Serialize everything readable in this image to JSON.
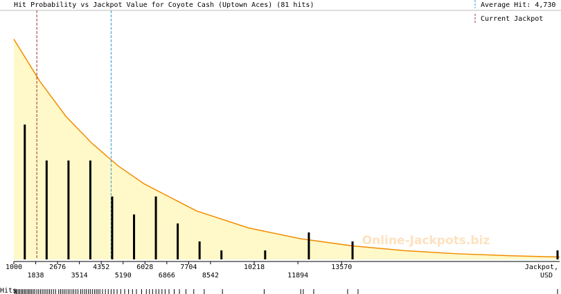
{
  "chart_data": {
    "type": "bar",
    "title": "Hit Probability vs Jackpot Value for Coyote Cash (Uptown Aces) (81 hits)",
    "x_label": "Jackpot,",
    "x_unit": "USD",
    "hits_label": "Hits",
    "watermark": "Online-Jackpots.biz",
    "xlim": [
      1000,
      21930
    ],
    "ylim": [
      0,
      27.7
    ],
    "xticks": [
      1000,
      1838,
      2676,
      3514,
      4352,
      5190,
      6028,
      6866,
      7704,
      8542,
      10218,
      11894,
      13570
    ],
    "bars": {
      "color": "#000000",
      "x": [
        1419,
        2257,
        3095,
        3933,
        4771,
        5609,
        6447,
        7285,
        8123,
        8961,
        10637,
        12313,
        13989,
        21850
      ],
      "values": [
        15,
        11,
        11,
        11,
        7,
        5,
        7,
        4,
        2,
        1,
        1,
        3,
        2,
        1
      ]
    },
    "curve": {
      "color": "#f08c00",
      "fill": "#fff8c8",
      "x": [
        1000,
        2000,
        3000,
        4000,
        5000,
        6000,
        8000,
        10000,
        12000,
        14000,
        16000,
        18000,
        20000,
        21930
      ],
      "values": [
        24.5,
        19.8,
        15.9,
        12.9,
        10.4,
        8.4,
        5.4,
        3.5,
        2.3,
        1.5,
        0.97,
        0.63,
        0.41,
        0.27
      ]
    },
    "average_hit": {
      "value": 4730,
      "label": "Average Hit: 4,730",
      "color": "#3399cc"
    },
    "current_jackpot": {
      "value": 1880,
      "label": "Current Jackpot",
      "color": "#993333"
    },
    "hits": [
      1030,
      1080,
      1120,
      1180,
      1230,
      1290,
      1340,
      1400,
      1450,
      1510,
      1570,
      1620,
      1680,
      1740,
      1800,
      1880,
      1950,
      2020,
      2090,
      2160,
      2230,
      2300,
      2370,
      2440,
      2520,
      2600,
      2720,
      2790,
      2860,
      2930,
      3000,
      3080,
      3150,
      3230,
      3300,
      3380,
      3460,
      3560,
      3630,
      3710,
      3780,
      3860,
      3930,
      4010,
      4090,
      4160,
      4230,
      4300,
      4400,
      4510,
      4620,
      4730,
      4840,
      4960,
      5100,
      5250,
      5400,
      5550,
      5700,
      5900,
      6080,
      6200,
      6320,
      6450,
      6560,
      6680,
      6800,
      6950,
      7150,
      7350,
      7600,
      7900,
      8300,
      9000,
      10600,
      12000,
      12100,
      12500,
      13800,
      14200,
      21850
    ]
  }
}
